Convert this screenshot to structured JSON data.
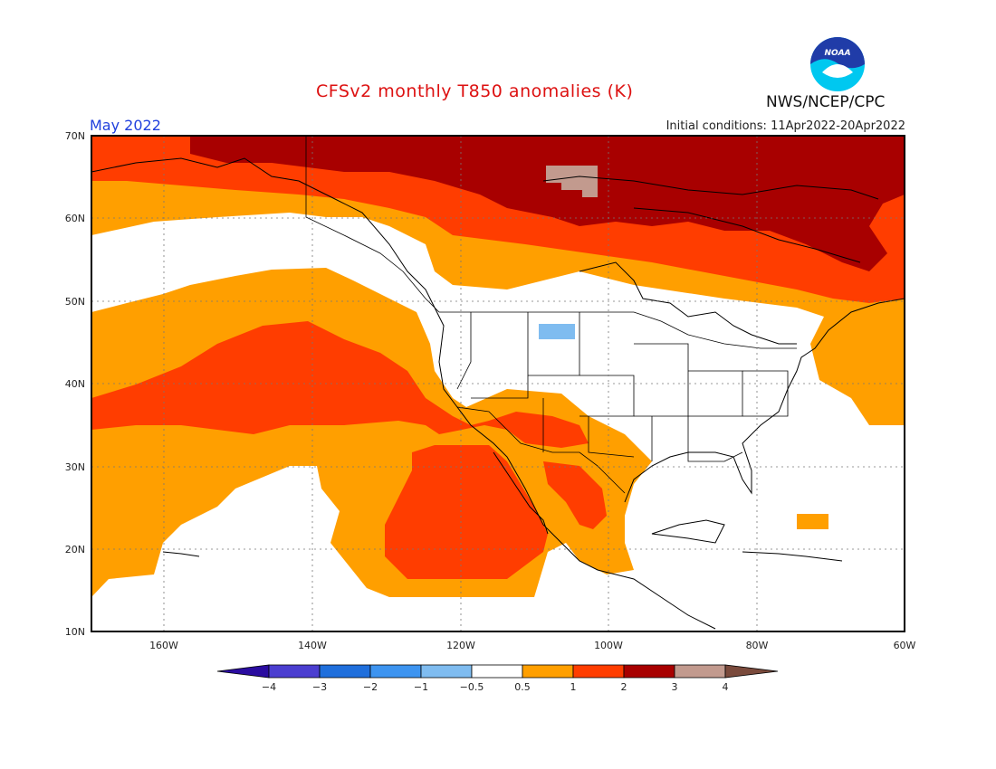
{
  "header": {
    "title": "CFSv2 monthly T850 anomalies (K)",
    "month": "May 2022",
    "initial_conditions": "Initial conditions: 11Apr2022-20Apr2022",
    "organization": "NWS/NCEP/CPC",
    "logo_text": "NOAA"
  },
  "map": {
    "lon_range": [
      -172,
      -60
    ],
    "lat_range": [
      10,
      70
    ],
    "lat_ticks": [
      "70N",
      "60N",
      "50N",
      "40N",
      "30N",
      "20N",
      "10N"
    ],
    "lon_ticks": [
      "160W",
      "140W",
      "120W",
      "100W",
      "80W",
      "60W"
    ]
  },
  "colorbar": {
    "labels": [
      "-4",
      "-3",
      "-2",
      "-1",
      "-0.5",
      "0.5",
      "1",
      "2",
      "3",
      "4"
    ],
    "colors": [
      "#2a0ca0",
      "#4b3ed0",
      "#1f6fdc",
      "#3d94f0",
      "#7fbcf0",
      "#ffffff",
      "#ff9f00",
      "#ff3d00",
      "#a80000",
      "#c29a8e",
      "#7a4a3c"
    ]
  }
}
